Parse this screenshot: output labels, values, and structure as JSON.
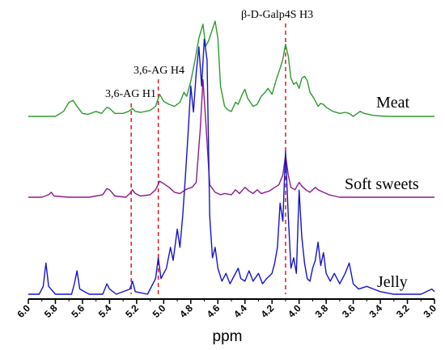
{
  "chart_data": {
    "type": "line",
    "xlabel": "ppm",
    "ylabel": "",
    "xlim": [
      6.0,
      3.0
    ],
    "x_reversed": true,
    "x_ticks": [
      "6.0",
      "5.8",
      "5.6",
      "5.4",
      "5.2",
      "5.0",
      "4.8",
      "4.6",
      "4.4",
      "4.2",
      "4.0",
      "3.8",
      "3.6",
      "3.4",
      "3.2",
      "3.0"
    ],
    "grid": false,
    "legend": "none",
    "series": [
      {
        "name": "Meat",
        "color": "#2e9a2e",
        "baseline": 0.0,
        "points": [
          [
            6.0,
            0.0
          ],
          [
            5.8,
            0.0
          ],
          [
            5.74,
            0.05
          ],
          [
            5.7,
            0.14
          ],
          [
            5.67,
            0.16
          ],
          [
            5.64,
            0.1
          ],
          [
            5.6,
            0.03
          ],
          [
            5.56,
            0.02
          ],
          [
            5.5,
            0.05
          ],
          [
            5.46,
            0.03
          ],
          [
            5.42,
            0.09
          ],
          [
            5.4,
            0.08
          ],
          [
            5.36,
            0.03
          ],
          [
            5.3,
            0.03
          ],
          [
            5.26,
            0.05
          ],
          [
            5.23,
            0.08
          ],
          [
            5.21,
            0.05
          ],
          [
            5.17,
            0.04
          ],
          [
            5.1,
            0.06
          ],
          [
            5.06,
            0.1
          ],
          [
            5.03,
            0.22
          ],
          [
            5.0,
            0.15
          ],
          [
            4.96,
            0.12
          ],
          [
            4.92,
            0.1
          ],
          [
            4.88,
            0.14
          ],
          [
            4.85,
            0.24
          ],
          [
            4.83,
            0.2
          ],
          [
            4.8,
            0.35
          ],
          [
            4.77,
            0.55
          ],
          [
            4.74,
            0.78
          ],
          [
            4.71,
            0.92
          ],
          [
            4.69,
            0.7
          ],
          [
            4.67,
            0.75
          ],
          [
            4.62,
            0.95
          ],
          [
            4.6,
            0.78
          ],
          [
            4.58,
            0.3
          ],
          [
            4.55,
            0.1
          ],
          [
            4.52,
            0.06
          ],
          [
            4.5,
            0.05
          ],
          [
            4.47,
            0.14
          ],
          [
            4.45,
            0.12
          ],
          [
            4.42,
            0.22
          ],
          [
            4.4,
            0.27
          ],
          [
            4.38,
            0.18
          ],
          [
            4.34,
            0.1
          ],
          [
            4.31,
            0.12
          ],
          [
            4.28,
            0.2
          ],
          [
            4.25,
            0.24
          ],
          [
            4.23,
            0.28
          ],
          [
            4.2,
            0.22
          ],
          [
            4.17,
            0.36
          ],
          [
            4.14,
            0.48
          ],
          [
            4.12,
            0.57
          ],
          [
            4.1,
            0.72
          ],
          [
            4.08,
            0.6
          ],
          [
            4.06,
            0.38
          ],
          [
            4.04,
            0.32
          ],
          [
            4.02,
            0.34
          ],
          [
            4.0,
            0.28
          ],
          [
            3.98,
            0.38
          ],
          [
            3.96,
            0.4
          ],
          [
            3.94,
            0.36
          ],
          [
            3.92,
            0.24
          ],
          [
            3.89,
            0.18
          ],
          [
            3.86,
            0.1
          ],
          [
            3.84,
            0.13
          ],
          [
            3.82,
            0.12
          ],
          [
            3.8,
            0.09
          ],
          [
            3.75,
            0.05
          ],
          [
            3.7,
            0.03
          ],
          [
            3.66,
            0.04
          ],
          [
            3.63,
            0.03
          ],
          [
            3.6,
            0.0
          ],
          [
            3.55,
            0.05
          ],
          [
            3.52,
            0.03
          ],
          [
            3.45,
            0.01
          ],
          [
            3.35,
            0.0
          ],
          [
            3.0,
            0.0
          ]
        ]
      },
      {
        "name": "Soft sweets",
        "color": "#8b1a8b",
        "baseline": 0.0,
        "points": [
          [
            6.0,
            0.0
          ],
          [
            5.9,
            0.0
          ],
          [
            5.85,
            0.02
          ],
          [
            5.83,
            0.04
          ],
          [
            5.81,
            0.01
          ],
          [
            5.7,
            0.0
          ],
          [
            5.55,
            0.0
          ],
          [
            5.45,
            0.02
          ],
          [
            5.42,
            0.07
          ],
          [
            5.4,
            0.06
          ],
          [
            5.36,
            0.01
          ],
          [
            5.28,
            0.0
          ],
          [
            5.25,
            0.03
          ],
          [
            5.23,
            0.06
          ],
          [
            5.21,
            0.03
          ],
          [
            5.17,
            0.01
          ],
          [
            5.1,
            0.02
          ],
          [
            5.06,
            0.06
          ],
          [
            5.03,
            0.13
          ],
          [
            5.0,
            0.11
          ],
          [
            4.96,
            0.08
          ],
          [
            4.92,
            0.04
          ],
          [
            4.88,
            0.03
          ],
          [
            4.84,
            0.06
          ],
          [
            4.82,
            0.07
          ],
          [
            4.79,
            0.08
          ],
          [
            4.76,
            0.12
          ],
          [
            4.73,
            0.55
          ],
          [
            4.71,
            0.95
          ],
          [
            4.69,
            0.62
          ],
          [
            4.66,
            0.1
          ],
          [
            4.62,
            0.04
          ],
          [
            4.58,
            0.02
          ],
          [
            4.55,
            0.03
          ],
          [
            4.5,
            0.02
          ],
          [
            4.47,
            0.06
          ],
          [
            4.44,
            0.03
          ],
          [
            4.4,
            0.08
          ],
          [
            4.37,
            0.05
          ],
          [
            4.34,
            0.03
          ],
          [
            4.31,
            0.06
          ],
          [
            4.28,
            0.03
          ],
          [
            4.22,
            0.05
          ],
          [
            4.18,
            0.08
          ],
          [
            4.15,
            0.1
          ],
          [
            4.12,
            0.18
          ],
          [
            4.1,
            0.34
          ],
          [
            4.08,
            0.18
          ],
          [
            4.06,
            0.08
          ],
          [
            4.03,
            0.06
          ],
          [
            4.0,
            0.12
          ],
          [
            3.98,
            0.09
          ],
          [
            3.95,
            0.06
          ],
          [
            3.92,
            0.04
          ],
          [
            3.88,
            0.08
          ],
          [
            3.86,
            0.06
          ],
          [
            3.82,
            0.04
          ],
          [
            3.78,
            0.02
          ],
          [
            3.74,
            0.01
          ],
          [
            3.7,
            0.0
          ],
          [
            3.6,
            0.0
          ],
          [
            3.0,
            0.0
          ]
        ]
      },
      {
        "name": "Jelly",
        "color": "#1414c8",
        "baseline": 0.0,
        "points": [
          [
            6.0,
            0.0
          ],
          [
            5.92,
            0.0
          ],
          [
            5.89,
            0.03
          ],
          [
            5.87,
            0.12
          ],
          [
            5.85,
            0.03
          ],
          [
            5.8,
            0.0
          ],
          [
            5.68,
            0.0
          ],
          [
            5.66,
            0.04
          ],
          [
            5.64,
            0.09
          ],
          [
            5.62,
            0.02
          ],
          [
            5.55,
            0.0
          ],
          [
            5.45,
            0.0
          ],
          [
            5.42,
            0.04
          ],
          [
            5.4,
            0.02
          ],
          [
            5.35,
            0.0
          ],
          [
            5.25,
            0.02
          ],
          [
            5.23,
            0.05
          ],
          [
            5.21,
            0.01
          ],
          [
            5.12,
            0.0
          ],
          [
            5.06,
            0.06
          ],
          [
            5.04,
            0.14
          ],
          [
            5.02,
            0.06
          ],
          [
            4.98,
            0.1
          ],
          [
            4.95,
            0.18
          ],
          [
            4.93,
            0.13
          ],
          [
            4.9,
            0.25
          ],
          [
            4.88,
            0.18
          ],
          [
            4.86,
            0.3
          ],
          [
            4.84,
            0.45
          ],
          [
            4.82,
            0.62
          ],
          [
            4.8,
            0.8
          ],
          [
            4.78,
            0.7
          ],
          [
            4.76,
            0.85
          ],
          [
            4.74,
            0.95
          ],
          [
            4.72,
            0.8
          ],
          [
            4.7,
            0.98
          ],
          [
            4.68,
            0.9
          ],
          [
            4.66,
            0.3
          ],
          [
            4.64,
            0.14
          ],
          [
            4.62,
            0.18
          ],
          [
            4.6,
            0.1
          ],
          [
            4.57,
            0.05
          ],
          [
            4.54,
            0.08
          ],
          [
            4.51,
            0.04
          ],
          [
            4.48,
            0.07
          ],
          [
            4.45,
            0.1
          ],
          [
            4.43,
            0.06
          ],
          [
            4.4,
            0.05
          ],
          [
            4.37,
            0.09
          ],
          [
            4.34,
            0.05
          ],
          [
            4.3,
            0.08
          ],
          [
            4.27,
            0.04
          ],
          [
            4.24,
            0.06
          ],
          [
            4.2,
            0.08
          ],
          [
            4.18,
            0.12
          ],
          [
            4.16,
            0.18
          ],
          [
            4.14,
            0.35
          ],
          [
            4.12,
            0.28
          ],
          [
            4.1,
            0.55
          ],
          [
            4.08,
            0.3
          ],
          [
            4.06,
            0.1
          ],
          [
            4.04,
            0.14
          ],
          [
            4.02,
            0.08
          ],
          [
            4.0,
            0.4
          ],
          [
            3.98,
            0.22
          ],
          [
            3.96,
            0.12
          ],
          [
            3.94,
            0.06
          ],
          [
            3.92,
            0.05
          ],
          [
            3.9,
            0.1
          ],
          [
            3.88,
            0.13
          ],
          [
            3.86,
            0.2
          ],
          [
            3.84,
            0.11
          ],
          [
            3.82,
            0.16
          ],
          [
            3.8,
            0.08
          ],
          [
            3.77,
            0.05
          ],
          [
            3.74,
            0.08
          ],
          [
            3.7,
            0.04
          ],
          [
            3.66,
            0.08
          ],
          [
            3.63,
            0.12
          ],
          [
            3.6,
            0.04
          ],
          [
            3.56,
            0.02
          ],
          [
            3.5,
            0.03
          ],
          [
            3.45,
            0.02
          ],
          [
            3.4,
            0.01
          ],
          [
            3.3,
            0.0
          ],
          [
            3.1,
            0.0
          ],
          [
            3.02,
            0.02
          ],
          [
            3.0,
            0.01
          ]
        ]
      }
    ],
    "reference_lines": [
      {
        "x": 5.24,
        "label": "3,6-AG H1",
        "color": "#e0191e"
      },
      {
        "x": 5.04,
        "label": "3,6-AG H4",
        "color": "#e0191e"
      },
      {
        "x": 4.1,
        "label": "β-D-Galp4S H3",
        "color": "#e0191e"
      }
    ]
  }
}
